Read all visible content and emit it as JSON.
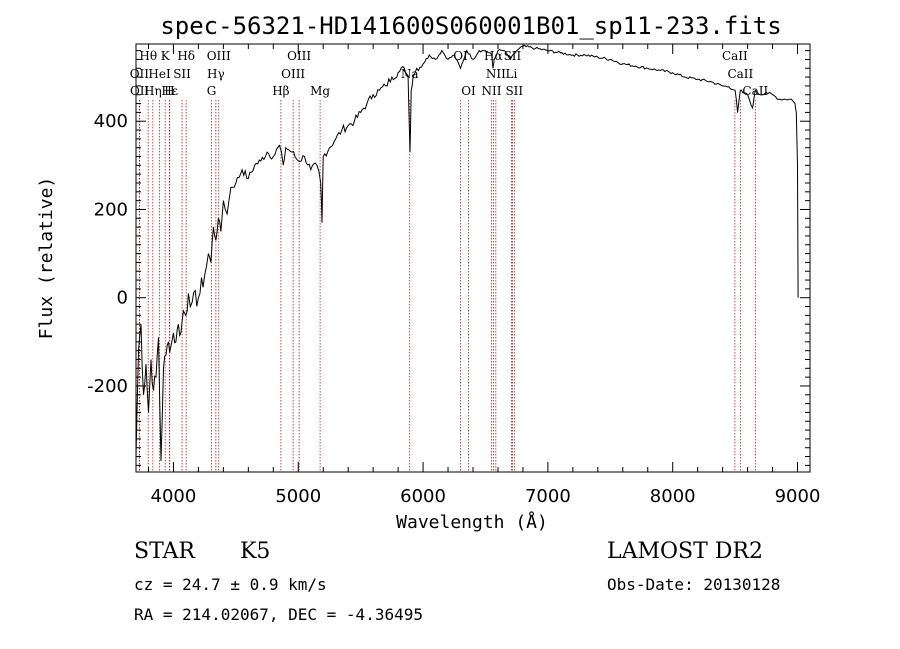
{
  "chart_data": {
    "type": "line",
    "title": "spec-56321-HD141600S060001B01_sp11-233.fits",
    "xlabel": "Wavelength (Å)",
    "ylabel": "Flux (relative)",
    "xlim": [
      3700,
      9100
    ],
    "ylim": [
      -395,
      575
    ],
    "xticks": [
      4000,
      5000,
      6000,
      7000,
      8000,
      9000
    ],
    "yticks": [
      -200,
      0,
      200,
      400
    ],
    "grid": false,
    "legend": "none",
    "colors": {
      "spectrum": "#000000",
      "lines": "#b02020"
    },
    "series": [
      {
        "values_x": [
          3700,
          3720,
          3740,
          3760,
          3780,
          3800,
          3820,
          3840,
          3860,
          3880,
          3900,
          3920,
          3940,
          3960,
          3980,
          4000,
          4020,
          4040,
          4060,
          4080,
          4100,
          4120,
          4150,
          4200,
          4250,
          4280,
          4300,
          4320,
          4340,
          4360,
          4380,
          4400,
          4430,
          4460,
          4500,
          4550,
          4600,
          4650,
          4700,
          4750,
          4800,
          4850,
          4880,
          4900,
          4950,
          5000,
          5050,
          5100,
          5150,
          5180,
          5190,
          5200,
          5250,
          5300,
          5350,
          5400,
          5450,
          5500,
          5550,
          5600,
          5650,
          5700,
          5750,
          5800,
          5850,
          5880,
          5895,
          5905,
          5920,
          5950,
          6000,
          6050,
          6100,
          6150,
          6200,
          6250,
          6300,
          6350,
          6400,
          6450,
          6500,
          6550,
          6560,
          6570,
          6600,
          6650,
          6700,
          6750,
          6800,
          6900,
          7000,
          7100,
          7200,
          7300,
          7400,
          7500,
          7600,
          7700,
          7800,
          7900,
          8000,
          8100,
          8200,
          8300,
          8400,
          8450,
          8500,
          8520,
          8542,
          8560,
          8600,
          8640,
          8662,
          8680,
          8700,
          8750,
          8800,
          8850,
          8900,
          8950,
          8980,
          8990,
          9000,
          9005
        ],
        "values_y": [
          -360,
          -120,
          -60,
          -220,
          -150,
          -260,
          -140,
          -210,
          -180,
          -90,
          -370,
          -160,
          -130,
          -100,
          -110,
          -80,
          -100,
          -60,
          -80,
          -30,
          -40,
          10,
          -10,
          0,
          50,
          100,
          80,
          160,
          130,
          180,
          150,
          220,
          190,
          250,
          260,
          290,
          270,
          300,
          310,
          330,
          320,
          345,
          300,
          340,
          330,
          310,
          320,
          290,
          300,
          260,
          170,
          320,
          340,
          360,
          380,
          390,
          400,
          420,
          440,
          460,
          470,
          480,
          500,
          510,
          520,
          500,
          330,
          470,
          500,
          520,
          530,
          550,
          540,
          560,
          540,
          550,
          520,
          560,
          540,
          560,
          560,
          550,
          520,
          540,
          560,
          560,
          540,
          560,
          570,
          565,
          560,
          555,
          550,
          550,
          545,
          540,
          530,
          525,
          520,
          515,
          510,
          500,
          495,
          490,
          480,
          478,
          470,
          420,
          470,
          465,
          460,
          430,
          470,
          465,
          460,
          465,
          460,
          450,
          450,
          450,
          440,
          420,
          300,
          0
        ]
      }
    ],
    "line_ids": [
      {
        "label": "Hθ",
        "x": 3798,
        "row": 0
      },
      {
        "label": "K",
        "x": 3934,
        "row": 0
      },
      {
        "label": "Hδ",
        "x": 4102,
        "row": 0
      },
      {
        "label": "OIII",
        "x": 4363,
        "row": 0
      },
      {
        "label": "OIII",
        "x": 5007,
        "row": 0
      },
      {
        "label": "OI",
        "x": 6300,
        "row": 0
      },
      {
        "label": "Hα",
        "x": 6563,
        "row": 0
      },
      {
        "label": "SII",
        "x": 6716,
        "row": 0
      },
      {
        "label": "OII",
        "x": 3727,
        "row": 1
      },
      {
        "label": "HeI",
        "x": 3889,
        "row": 1
      },
      {
        "label": "SII",
        "x": 4069,
        "row": 1
      },
      {
        "label": "Hγ",
        "x": 4340,
        "row": 1
      },
      {
        "label": "OIII",
        "x": 4959,
        "row": 1
      },
      {
        "label": "Na",
        "x": 5893,
        "row": 1
      },
      {
        "label": "NII",
        "x": 6583,
        "row": 1
      },
      {
        "label": "Li",
        "x": 6708,
        "row": 1
      },
      {
        "label": "CaII",
        "x": 8498,
        "row": 0
      },
      {
        "label": "CaII",
        "x": 8542,
        "row": 1
      },
      {
        "label": "OII",
        "x": 3729,
        "row": 2
      },
      {
        "label": "Hε",
        "x": 3970,
        "row": 2
      },
      {
        "label": "Hη",
        "x": 3835,
        "row": 2
      },
      {
        "label": "H",
        "x": 3968,
        "row": 2
      },
      {
        "label": "G",
        "x": 4305,
        "row": 2
      },
      {
        "label": "Hβ",
        "x": 4861,
        "row": 2
      },
      {
        "label": "Mg",
        "x": 5175,
        "row": 2
      },
      {
        "label": "OI",
        "x": 6364,
        "row": 2
      },
      {
        "label": "NII",
        "x": 6548,
        "row": 2
      },
      {
        "label": "SII",
        "x": 6731,
        "row": 2
      },
      {
        "label": "CaII",
        "x": 8662,
        "row": 2
      }
    ]
  },
  "info": {
    "class": "STAR",
    "subclass": "K5",
    "survey": "LAMOST DR2",
    "cz": "cz = 24.7 ± 0.9 km/s",
    "obs_date": "Obs-Date: 20130128",
    "radec": "RA = 214.02067, DEC =  -4.36495"
  }
}
